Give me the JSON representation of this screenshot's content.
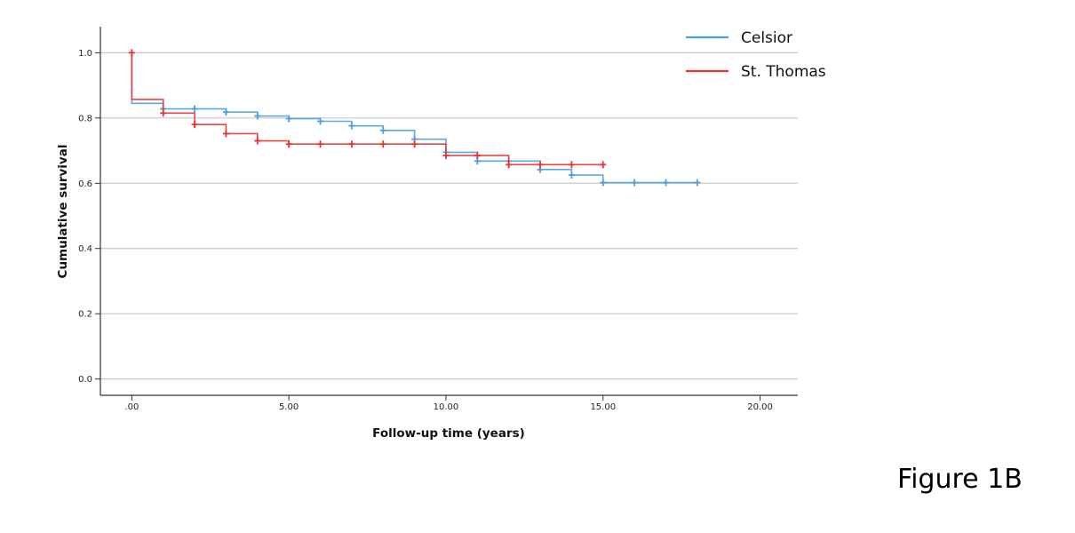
{
  "figure_label": "Figure 1B",
  "chart_data": {
    "type": "line",
    "subtype": "kaplan-meier step",
    "xlabel": "Follow-up time  (years)",
    "ylabel": "Cumulative survival",
    "xlim": [
      -1,
      21.2
    ],
    "ylim": [
      -0.05,
      1.08
    ],
    "x_ticks": [
      0,
      5,
      10,
      15,
      20
    ],
    "x_tick_labels": [
      ".00",
      "5.00",
      "10.00",
      "15.00",
      "20.00"
    ],
    "y_ticks": [
      0.0,
      0.2,
      0.4,
      0.6,
      0.8,
      1.0
    ],
    "y_tick_labels": [
      "0.0",
      "0.2",
      "0.4",
      "0.6",
      "0.8",
      "1.0"
    ],
    "grid": "horizontal",
    "legend_position": "top-right",
    "series": [
      {
        "name": "Celsior",
        "color": "#4a9fe0",
        "steps": [
          [
            0,
            1.0
          ],
          [
            0,
            0.845
          ],
          [
            1,
            0.828
          ],
          [
            3,
            0.818
          ],
          [
            4,
            0.806
          ],
          [
            5,
            0.798
          ],
          [
            6,
            0.79
          ],
          [
            7,
            0.776
          ],
          [
            8,
            0.762
          ],
          [
            9,
            0.735
          ],
          [
            10,
            0.695
          ],
          [
            11,
            0.668
          ],
          [
            13,
            0.642
          ],
          [
            14,
            0.625
          ],
          [
            15,
            0.602
          ],
          [
            18,
            0.602
          ]
        ],
        "censored": [
          [
            1,
            0.828
          ],
          [
            2,
            0.828
          ],
          [
            3,
            0.818
          ],
          [
            4,
            0.806
          ],
          [
            5,
            0.798
          ],
          [
            6,
            0.79
          ],
          [
            7,
            0.776
          ],
          [
            8,
            0.762
          ],
          [
            9,
            0.735
          ],
          [
            10,
            0.695
          ],
          [
            11,
            0.668
          ],
          [
            12,
            0.668
          ],
          [
            13,
            0.642
          ],
          [
            14,
            0.625
          ],
          [
            15,
            0.602
          ],
          [
            16,
            0.602
          ],
          [
            17,
            0.602
          ],
          [
            18,
            0.602
          ]
        ]
      },
      {
        "name": "St. Thomas",
        "color": "#e8322f",
        "steps": [
          [
            0,
            1.0
          ],
          [
            0,
            0.857
          ],
          [
            1,
            0.815
          ],
          [
            2,
            0.78
          ],
          [
            3,
            0.752
          ],
          [
            4,
            0.73
          ],
          [
            5,
            0.72
          ],
          [
            10,
            0.685
          ],
          [
            12,
            0.657
          ],
          [
            15,
            0.657
          ]
        ],
        "censored": [
          [
            0,
            1.0
          ],
          [
            1,
            0.815
          ],
          [
            2,
            0.78
          ],
          [
            3,
            0.752
          ],
          [
            4,
            0.73
          ],
          [
            5,
            0.72
          ],
          [
            6,
            0.72
          ],
          [
            7,
            0.72
          ],
          [
            8,
            0.72
          ],
          [
            9,
            0.72
          ],
          [
            10,
            0.685
          ],
          [
            11,
            0.685
          ],
          [
            12,
            0.657
          ],
          [
            13,
            0.657
          ],
          [
            14,
            0.657
          ],
          [
            15,
            0.657
          ]
        ]
      }
    ]
  }
}
